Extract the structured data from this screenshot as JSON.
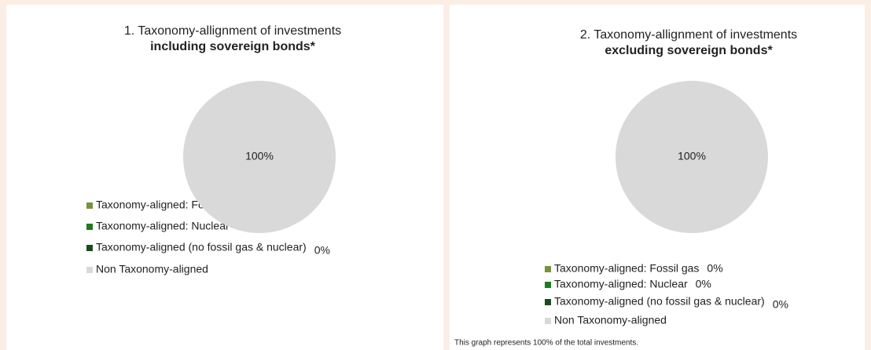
{
  "chart_data": [
    {
      "type": "pie",
      "title": "1. Taxonomy-allignment of investments",
      "subtitle": "including sovereign bonds*",
      "categories": [
        "Taxonomy-aligned: Fossil gas",
        "Taxonomy-aligned: Nuclear",
        "Taxonomy-aligned (no fossil gas & nuclear)",
        "Non Taxonomy-aligned"
      ],
      "values": [
        0,
        0,
        0,
        100
      ],
      "value_labels": [
        "0%",
        "0%",
        "0%",
        "100%"
      ],
      "colors": [
        "#77933c",
        "#1e7b1e",
        "#1d4a1d",
        "#d9d9d9"
      ]
    },
    {
      "type": "pie",
      "title": "2. Taxonomy-allignment of investments",
      "subtitle": "excluding sovereign bonds*",
      "categories": [
        "Taxonomy-aligned: Fossil gas",
        "Taxonomy-aligned: Nuclear",
        "Taxonomy-aligned (no fossil gas & nuclear)",
        "Non Taxonomy-aligned"
      ],
      "values": [
        0,
        0,
        0,
        100
      ],
      "value_labels": [
        "0%",
        "0%",
        "0%",
        "100%"
      ],
      "colors": [
        "#77933c",
        "#1e7b1e",
        "#1d4a1d",
        "#d9d9d9"
      ],
      "note": "This graph represents 100% of the total investments."
    }
  ]
}
